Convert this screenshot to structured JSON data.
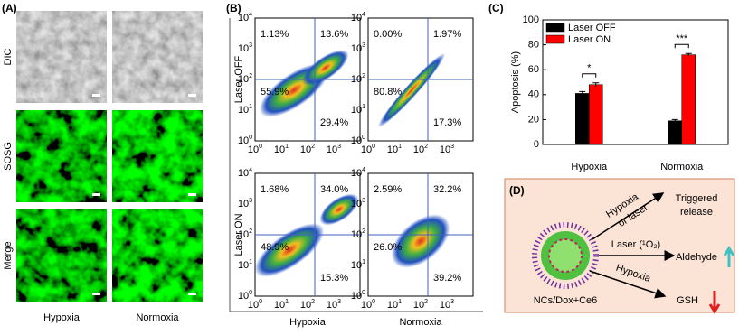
{
  "panel_a": {
    "label": "(A)",
    "row_labels": [
      "DIC",
      "SOSG",
      "Merge"
    ],
    "col_labels": [
      "Hypoxia",
      "Normoxia"
    ]
  },
  "panel_b": {
    "label": "(B)",
    "row_labels": [
      "Laser OFF",
      "Laser ON"
    ],
    "col_labels": [
      "Hypoxia",
      "Normoxia"
    ],
    "tick_base": "10",
    "y_tick_exponents": [
      "0",
      "1",
      "2",
      "3",
      "4"
    ],
    "x_tick_exponents": [
      "0",
      "1",
      "2",
      "3"
    ],
    "plots": [
      {
        "quadrants": [
          "1.13%",
          "13.6%",
          "55.9%",
          "29.4%"
        ]
      },
      {
        "quadrants": [
          "0.00%",
          "1.97%",
          "80.8%",
          "17.3%"
        ]
      },
      {
        "quadrants": [
          "1.68%",
          "34.0%",
          "48.9%",
          "15.3%"
        ]
      },
      {
        "quadrants": [
          "2.59%",
          "32.2%",
          "26.0%",
          "39.2%"
        ]
      }
    ]
  },
  "chart_data": {
    "type": "bar",
    "panel_label": "(C)",
    "y_label": "Apoptosis (%)",
    "categories": [
      "Hypoxia",
      "Normoxia"
    ],
    "series": [
      {
        "name": "Laser OFF",
        "color": "#000000",
        "values": [
          41,
          19
        ],
        "errors": [
          1.5,
          1
        ]
      },
      {
        "name": "Laser ON",
        "color": "#ff0000",
        "values": [
          48,
          72
        ],
        "errors": [
          1.5,
          1
        ]
      }
    ],
    "significance": [
      "*",
      "***"
    ],
    "ylim": [
      0,
      100
    ],
    "yticks": [
      0,
      20,
      40,
      60,
      80,
      100
    ],
    "legend": "upper-left"
  },
  "panel_d": {
    "label": "(D)",
    "particle": "NCs/Dox+Ce6",
    "arrow_up_label": [
      "Hypoxia",
      "or laser"
    ],
    "arrow_mid_label": "Laser (¹O₂)",
    "arrow_down_label": "Hypoxia",
    "outcomes": [
      [
        "Triggered",
        "release"
      ],
      [
        "Aldehyde"
      ],
      [
        "GSH"
      ]
    ]
  }
}
